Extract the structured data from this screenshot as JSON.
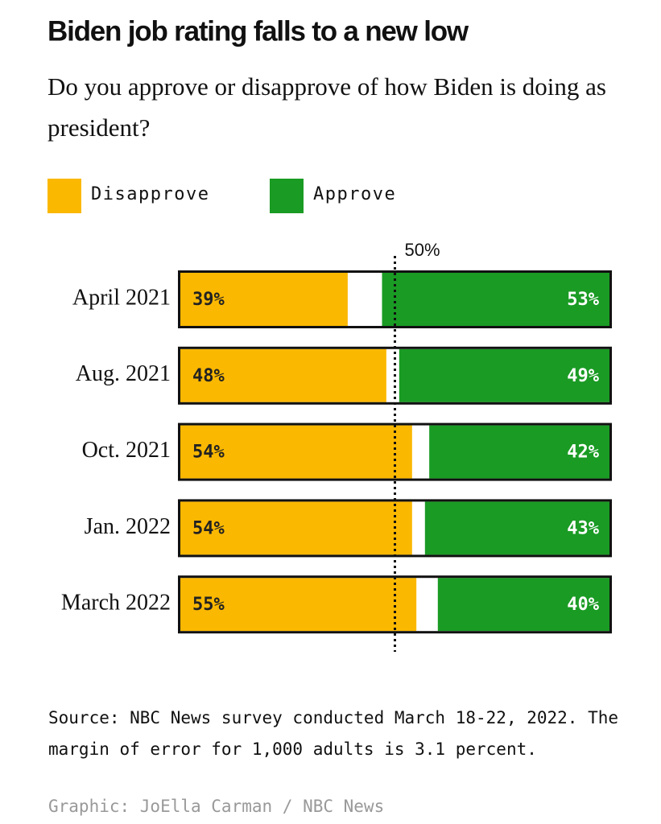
{
  "chart_data": {
    "type": "diverging_bar",
    "title": "Biden job rating falls to a new low",
    "subtitle": "Do you approve or disapprove of how Biden is doing as president?",
    "categories": [
      "April 2021",
      "Aug. 2021",
      "Oct. 2021",
      "Jan. 2022",
      "March 2022"
    ],
    "series": [
      {
        "name": "Disapprove",
        "color": "#fbb800",
        "values": [
          39,
          48,
          54,
          54,
          55
        ],
        "value_labels": [
          "39%",
          "48%",
          "54%",
          "54%",
          "55%"
        ],
        "anchor": "left"
      },
      {
        "name": "Approve",
        "color": "#1a9b24",
        "values": [
          53,
          49,
          42,
          43,
          40
        ],
        "value_labels": [
          "53%",
          "49%",
          "42%",
          "43%",
          "40%"
        ],
        "anchor": "right"
      }
    ],
    "xlim": [
      0,
      100
    ],
    "reference_line": {
      "value": 50,
      "label": "50%"
    },
    "source": "Source: NBC News survey conducted March 18-22, 2022. The margin of error for 1,000 adults is 3.1 percent.",
    "credit": "Graphic: JoElla Carman / NBC News"
  }
}
